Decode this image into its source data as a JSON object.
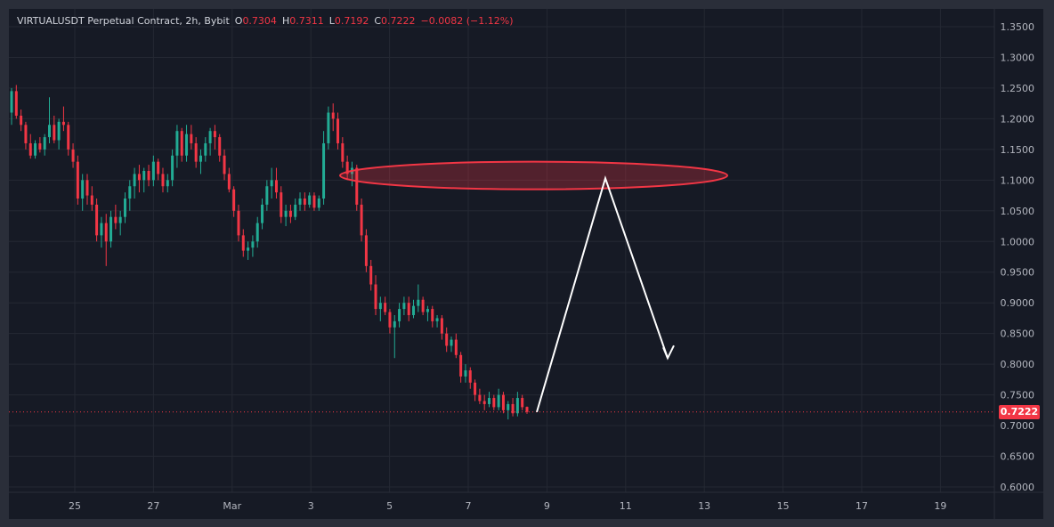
{
  "legend": {
    "symbol": "VIRTUALUSDT Perpetual Contract, 2h, Bybit",
    "o_key": "O",
    "o_val": "0.7304",
    "h_key": "H",
    "h_val": "0.7311",
    "l_key": "L",
    "l_val": "0.7192",
    "c_key": "C",
    "c_val": "0.7222",
    "change": "−0.0082 (−1.12%)"
  },
  "colors": {
    "up": "#22ab94",
    "down": "#f23645",
    "background": "#161a25",
    "grid": "#242833",
    "axis_text": "#b2b5be",
    "annotation": "#ffffff"
  },
  "last_price_label": "0.7222",
  "chart_data": {
    "type": "candlestick",
    "title": "",
    "y_ticks": [
      "1.3500",
      "1.3000",
      "1.2500",
      "1.2000",
      "1.1500",
      "1.1000",
      "1.0500",
      "1.0000",
      "0.9500",
      "0.9000",
      "0.8500",
      "0.8000",
      "0.7500",
      "0.7000",
      "0.6500",
      "0.6000"
    ],
    "x_ticks": [
      "25",
      "27",
      "Mar",
      "3",
      "5",
      "7",
      "9",
      "11",
      "13",
      "15",
      "17",
      "19"
    ],
    "ylim": [
      0.59,
      1.37
    ],
    "last_price": 0.7222,
    "zone": {
      "label": "",
      "y_low": 1.085,
      "y_high": 1.13,
      "x_start": "Mar 3.8",
      "x_end": "Mar 13.5"
    },
    "projection_path": [
      {
        "x": "Mar 8.7",
        "y": 0.722
      },
      {
        "x": "Mar 10.6",
        "y": 1.103
      },
      {
        "x": "Mar 12.0",
        "y": 0.81
      }
    ],
    "candles": [
      {
        "o": 1.21,
        "h": 1.25,
        "l": 1.19,
        "c": 1.245
      },
      {
        "o": 1.245,
        "h": 1.255,
        "l": 1.2,
        "c": 1.205
      },
      {
        "o": 1.205,
        "h": 1.215,
        "l": 1.18,
        "c": 1.19
      },
      {
        "o": 1.19,
        "h": 1.195,
        "l": 1.15,
        "c": 1.16
      },
      {
        "o": 1.16,
        "h": 1.175,
        "l": 1.135,
        "c": 1.14
      },
      {
        "o": 1.14,
        "h": 1.165,
        "l": 1.135,
        "c": 1.16
      },
      {
        "o": 1.16,
        "h": 1.17,
        "l": 1.145,
        "c": 1.15
      },
      {
        "o": 1.15,
        "h": 1.175,
        "l": 1.14,
        "c": 1.17
      },
      {
        "o": 1.17,
        "h": 1.235,
        "l": 1.16,
        "c": 1.19
      },
      {
        "o": 1.19,
        "h": 1.205,
        "l": 1.16,
        "c": 1.165
      },
      {
        "o": 1.165,
        "h": 1.2,
        "l": 1.15,
        "c": 1.195
      },
      {
        "o": 1.195,
        "h": 1.22,
        "l": 1.18,
        "c": 1.19
      },
      {
        "o": 1.19,
        "h": 1.195,
        "l": 1.14,
        "c": 1.15
      },
      {
        "o": 1.15,
        "h": 1.16,
        "l": 1.12,
        "c": 1.13
      },
      {
        "o": 1.13,
        "h": 1.14,
        "l": 1.06,
        "c": 1.07
      },
      {
        "o": 1.07,
        "h": 1.11,
        "l": 1.05,
        "c": 1.1
      },
      {
        "o": 1.1,
        "h": 1.11,
        "l": 1.06,
        "c": 1.075
      },
      {
        "o": 1.075,
        "h": 1.09,
        "l": 1.05,
        "c": 1.06
      },
      {
        "o": 1.06,
        "h": 1.07,
        "l": 1.0,
        "c": 1.01
      },
      {
        "o": 1.01,
        "h": 1.04,
        "l": 0.99,
        "c": 1.03
      },
      {
        "o": 1.03,
        "h": 1.045,
        "l": 0.96,
        "c": 1.0
      },
      {
        "o": 1.0,
        "h": 1.05,
        "l": 0.99,
        "c": 1.04
      },
      {
        "o": 1.04,
        "h": 1.06,
        "l": 1.02,
        "c": 1.03
      },
      {
        "o": 1.03,
        "h": 1.05,
        "l": 1.01,
        "c": 1.04
      },
      {
        "o": 1.04,
        "h": 1.08,
        "l": 1.03,
        "c": 1.07
      },
      {
        "o": 1.07,
        "h": 1.1,
        "l": 1.05,
        "c": 1.09
      },
      {
        "o": 1.09,
        "h": 1.12,
        "l": 1.07,
        "c": 1.11
      },
      {
        "o": 1.11,
        "h": 1.125,
        "l": 1.08,
        "c": 1.1
      },
      {
        "o": 1.1,
        "h": 1.12,
        "l": 1.08,
        "c": 1.115
      },
      {
        "o": 1.115,
        "h": 1.125,
        "l": 1.09,
        "c": 1.1
      },
      {
        "o": 1.1,
        "h": 1.14,
        "l": 1.09,
        "c": 1.13
      },
      {
        "o": 1.13,
        "h": 1.135,
        "l": 1.1,
        "c": 1.11
      },
      {
        "o": 1.11,
        "h": 1.12,
        "l": 1.08,
        "c": 1.09
      },
      {
        "o": 1.09,
        "h": 1.11,
        "l": 1.08,
        "c": 1.1
      },
      {
        "o": 1.1,
        "h": 1.15,
        "l": 1.09,
        "c": 1.14
      },
      {
        "o": 1.14,
        "h": 1.19,
        "l": 1.12,
        "c": 1.18
      },
      {
        "o": 1.18,
        "h": 1.185,
        "l": 1.13,
        "c": 1.14
      },
      {
        "o": 1.14,
        "h": 1.19,
        "l": 1.13,
        "c": 1.175
      },
      {
        "o": 1.175,
        "h": 1.19,
        "l": 1.15,
        "c": 1.16
      },
      {
        "o": 1.16,
        "h": 1.17,
        "l": 1.12,
        "c": 1.13
      },
      {
        "o": 1.13,
        "h": 1.15,
        "l": 1.11,
        "c": 1.14
      },
      {
        "o": 1.14,
        "h": 1.17,
        "l": 1.13,
        "c": 1.16
      },
      {
        "o": 1.16,
        "h": 1.185,
        "l": 1.14,
        "c": 1.18
      },
      {
        "o": 1.18,
        "h": 1.19,
        "l": 1.15,
        "c": 1.17
      },
      {
        "o": 1.17,
        "h": 1.175,
        "l": 1.13,
        "c": 1.14
      },
      {
        "o": 1.14,
        "h": 1.15,
        "l": 1.1,
        "c": 1.11
      },
      {
        "o": 1.11,
        "h": 1.12,
        "l": 1.08,
        "c": 1.085
      },
      {
        "o": 1.085,
        "h": 1.09,
        "l": 1.04,
        "c": 1.05
      },
      {
        "o": 1.05,
        "h": 1.06,
        "l": 1.0,
        "c": 1.01
      },
      {
        "o": 1.01,
        "h": 1.02,
        "l": 0.975,
        "c": 0.985
      },
      {
        "o": 0.985,
        "h": 1.0,
        "l": 0.97,
        "c": 0.99
      },
      {
        "o": 0.99,
        "h": 1.01,
        "l": 0.975,
        "c": 1.0
      },
      {
        "o": 1.0,
        "h": 1.04,
        "l": 0.99,
        "c": 1.03
      },
      {
        "o": 1.03,
        "h": 1.07,
        "l": 1.02,
        "c": 1.06
      },
      {
        "o": 1.06,
        "h": 1.1,
        "l": 1.05,
        "c": 1.09
      },
      {
        "o": 1.09,
        "h": 1.12,
        "l": 1.07,
        "c": 1.1
      },
      {
        "o": 1.1,
        "h": 1.12,
        "l": 1.07,
        "c": 1.08
      },
      {
        "o": 1.08,
        "h": 1.09,
        "l": 1.03,
        "c": 1.04
      },
      {
        "o": 1.04,
        "h": 1.06,
        "l": 1.025,
        "c": 1.05
      },
      {
        "o": 1.05,
        "h": 1.06,
        "l": 1.03,
        "c": 1.04
      },
      {
        "o": 1.04,
        "h": 1.07,
        "l": 1.035,
        "c": 1.06
      },
      {
        "o": 1.06,
        "h": 1.08,
        "l": 1.05,
        "c": 1.07
      },
      {
        "o": 1.07,
        "h": 1.08,
        "l": 1.05,
        "c": 1.06
      },
      {
        "o": 1.06,
        "h": 1.08,
        "l": 1.055,
        "c": 1.075
      },
      {
        "o": 1.075,
        "h": 1.08,
        "l": 1.05,
        "c": 1.055
      },
      {
        "o": 1.055,
        "h": 1.075,
        "l": 1.05,
        "c": 1.07
      },
      {
        "o": 1.07,
        "h": 1.18,
        "l": 1.06,
        "c": 1.16
      },
      {
        "o": 1.16,
        "h": 1.22,
        "l": 1.15,
        "c": 1.21
      },
      {
        "o": 1.21,
        "h": 1.225,
        "l": 1.18,
        "c": 1.2
      },
      {
        "o": 1.2,
        "h": 1.21,
        "l": 1.15,
        "c": 1.16
      },
      {
        "o": 1.16,
        "h": 1.17,
        "l": 1.12,
        "c": 1.13
      },
      {
        "o": 1.13,
        "h": 1.14,
        "l": 1.1,
        "c": 1.11
      },
      {
        "o": 1.11,
        "h": 1.13,
        "l": 1.09,
        "c": 1.12
      },
      {
        "o": 1.12,
        "h": 1.125,
        "l": 1.05,
        "c": 1.06
      },
      {
        "o": 1.06,
        "h": 1.07,
        "l": 1.0,
        "c": 1.01
      },
      {
        "o": 1.01,
        "h": 1.02,
        "l": 0.95,
        "c": 0.96
      },
      {
        "o": 0.96,
        "h": 0.97,
        "l": 0.92,
        "c": 0.93
      },
      {
        "o": 0.93,
        "h": 0.945,
        "l": 0.88,
        "c": 0.89
      },
      {
        "o": 0.89,
        "h": 0.91,
        "l": 0.87,
        "c": 0.9
      },
      {
        "o": 0.9,
        "h": 0.91,
        "l": 0.88,
        "c": 0.885
      },
      {
        "o": 0.885,
        "h": 0.89,
        "l": 0.85,
        "c": 0.86
      },
      {
        "o": 0.86,
        "h": 0.88,
        "l": 0.81,
        "c": 0.87
      },
      {
        "o": 0.87,
        "h": 0.9,
        "l": 0.86,
        "c": 0.89
      },
      {
        "o": 0.89,
        "h": 0.91,
        "l": 0.88,
        "c": 0.9
      },
      {
        "o": 0.9,
        "h": 0.91,
        "l": 0.87,
        "c": 0.88
      },
      {
        "o": 0.88,
        "h": 0.905,
        "l": 0.875,
        "c": 0.895
      },
      {
        "o": 0.895,
        "h": 0.93,
        "l": 0.885,
        "c": 0.905
      },
      {
        "o": 0.905,
        "h": 0.91,
        "l": 0.88,
        "c": 0.885
      },
      {
        "o": 0.885,
        "h": 0.895,
        "l": 0.87,
        "c": 0.89
      },
      {
        "o": 0.89,
        "h": 0.895,
        "l": 0.86,
        "c": 0.87
      },
      {
        "o": 0.87,
        "h": 0.88,
        "l": 0.86,
        "c": 0.875
      },
      {
        "o": 0.875,
        "h": 0.88,
        "l": 0.84,
        "c": 0.85
      },
      {
        "o": 0.85,
        "h": 0.86,
        "l": 0.82,
        "c": 0.83
      },
      {
        "o": 0.83,
        "h": 0.845,
        "l": 0.82,
        "c": 0.84
      },
      {
        "o": 0.84,
        "h": 0.85,
        "l": 0.81,
        "c": 0.815
      },
      {
        "o": 0.815,
        "h": 0.82,
        "l": 0.77,
        "c": 0.78
      },
      {
        "o": 0.78,
        "h": 0.8,
        "l": 0.77,
        "c": 0.79
      },
      {
        "o": 0.79,
        "h": 0.795,
        "l": 0.76,
        "c": 0.77
      },
      {
        "o": 0.77,
        "h": 0.775,
        "l": 0.74,
        "c": 0.75
      },
      {
        "o": 0.75,
        "h": 0.76,
        "l": 0.735,
        "c": 0.74
      },
      {
        "o": 0.74,
        "h": 0.75,
        "l": 0.725,
        "c": 0.735
      },
      {
        "o": 0.735,
        "h": 0.755,
        "l": 0.73,
        "c": 0.745
      },
      {
        "o": 0.745,
        "h": 0.75,
        "l": 0.725,
        "c": 0.73
      },
      {
        "o": 0.73,
        "h": 0.76,
        "l": 0.725,
        "c": 0.75
      },
      {
        "o": 0.75,
        "h": 0.755,
        "l": 0.72,
        "c": 0.725
      },
      {
        "o": 0.725,
        "h": 0.74,
        "l": 0.71,
        "c": 0.735
      },
      {
        "o": 0.735,
        "h": 0.745,
        "l": 0.715,
        "c": 0.72
      },
      {
        "o": 0.72,
        "h": 0.755,
        "l": 0.715,
        "c": 0.745
      },
      {
        "o": 0.745,
        "h": 0.75,
        "l": 0.725,
        "c": 0.73
      },
      {
        "o": 0.7304,
        "h": 0.7311,
        "l": 0.7192,
        "c": 0.7222
      }
    ]
  }
}
